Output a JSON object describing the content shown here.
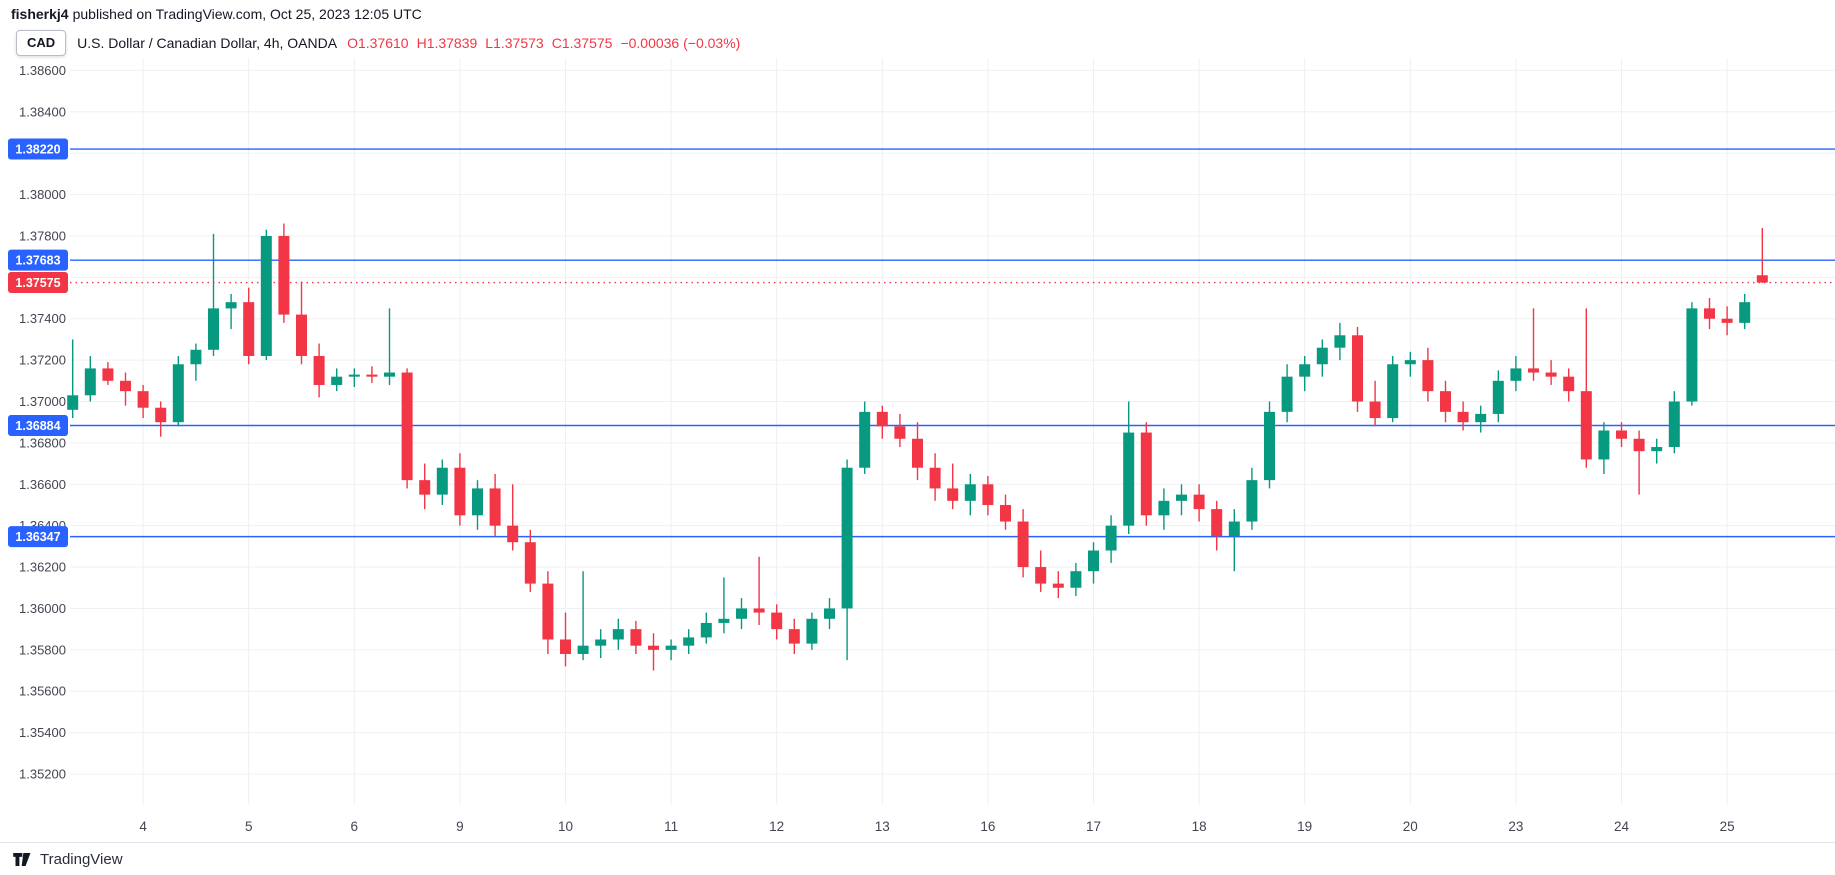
{
  "meta": {
    "username": "fisherkj4",
    "published_suffix": "published on TradingView.com, Oct 25, 2023 12:05 UTC"
  },
  "header": {
    "currency_badge": "CAD",
    "title": "U.S. Dollar / Canadian Dollar, 4h, OANDA",
    "ohlc": {
      "o_label": "O",
      "o": "1.37610",
      "h_label": "H",
      "h": "1.37839",
      "l_label": "L",
      "l": "1.37573",
      "c_label": "C",
      "c": "1.37575",
      "change": "−0.00036 (−0.03%)"
    }
  },
  "footer": {
    "brand": "TradingView"
  },
  "colors": {
    "up": "#089981",
    "down": "#f23645",
    "line_blue": "#2962ff",
    "last_price_red": "#f23645",
    "grid": "#edf0f4",
    "axis_text": "#434651",
    "text": "#131722"
  },
  "chart_data": {
    "type": "candlestick",
    "symbol": "U.S. Dollar / Canadian Dollar",
    "timeframe": "4h",
    "exchange": "OANDA",
    "y_axis": {
      "max_label": 1.386,
      "min_label": 1.352,
      "step": 0.002,
      "hidden_labels": [
        "1.38200",
        "1.37600"
      ]
    },
    "x_axis": {
      "labels": [
        {
          "index": 4,
          "label": "4"
        },
        {
          "index": 10,
          "label": "5"
        },
        {
          "index": 16,
          "label": "6"
        },
        {
          "index": 22,
          "label": "9"
        },
        {
          "index": 28,
          "label": "10"
        },
        {
          "index": 34,
          "label": "11"
        },
        {
          "index": 40,
          "label": "12"
        },
        {
          "index": 46,
          "label": "13"
        },
        {
          "index": 52,
          "label": "16"
        },
        {
          "index": 58,
          "label": "17"
        },
        {
          "index": 64,
          "label": "18"
        },
        {
          "index": 70,
          "label": "19"
        },
        {
          "index": 76,
          "label": "20"
        },
        {
          "index": 82,
          "label": "23"
        },
        {
          "index": 88,
          "label": "24"
        },
        {
          "index": 94,
          "label": "25"
        }
      ]
    },
    "price_lines": [
      {
        "price": 1.3822,
        "label": "1.38220",
        "color": "#2962ff",
        "style": "solid",
        "role": "level"
      },
      {
        "price": 1.37683,
        "label": "1.37683",
        "color": "#2962ff",
        "style": "solid",
        "role": "level"
      },
      {
        "price": 1.36884,
        "label": "1.36884",
        "color": "#2962ff",
        "style": "solid",
        "role": "level"
      },
      {
        "price": 1.36347,
        "label": "1.36347",
        "color": "#2962ff",
        "style": "solid",
        "role": "level"
      },
      {
        "price": 1.37575,
        "label": "1.37575",
        "color": "#f23645",
        "style": "dotted",
        "role": "last-price"
      }
    ],
    "candles": [
      [
        1.3696,
        1.373,
        1.3692,
        1.3703
      ],
      [
        1.3703,
        1.3722,
        1.37,
        1.3716
      ],
      [
        1.3716,
        1.3719,
        1.3708,
        1.371
      ],
      [
        1.371,
        1.3714,
        1.3698,
        1.3705
      ],
      [
        1.3705,
        1.3708,
        1.3692,
        1.3697
      ],
      [
        1.3697,
        1.37,
        1.3683,
        1.369
      ],
      [
        1.369,
        1.3722,
        1.3688,
        1.3718
      ],
      [
        1.3718,
        1.3728,
        1.371,
        1.3725
      ],
      [
        1.3725,
        1.3781,
        1.3722,
        1.3745
      ],
      [
        1.3745,
        1.3752,
        1.3735,
        1.3748
      ],
      [
        1.3748,
        1.3755,
        1.3718,
        1.3722
      ],
      [
        1.3722,
        1.3783,
        1.372,
        1.378
      ],
      [
        1.378,
        1.3786,
        1.3738,
        1.3742
      ],
      [
        1.3742,
        1.3758,
        1.3718,
        1.3722
      ],
      [
        1.3722,
        1.3728,
        1.3702,
        1.3708
      ],
      [
        1.3708,
        1.3716,
        1.3705,
        1.3712
      ],
      [
        1.3712,
        1.3716,
        1.3707,
        1.3713
      ],
      [
        1.3713,
        1.3717,
        1.3709,
        1.3712
      ],
      [
        1.3712,
        1.3745,
        1.3708,
        1.3714
      ],
      [
        1.3714,
        1.3716,
        1.3658,
        1.3662
      ],
      [
        1.3662,
        1.367,
        1.3648,
        1.3655
      ],
      [
        1.3655,
        1.3672,
        1.365,
        1.3668
      ],
      [
        1.3668,
        1.3675,
        1.364,
        1.3645
      ],
      [
        1.3645,
        1.3662,
        1.3638,
        1.3658
      ],
      [
        1.3658,
        1.3665,
        1.3635,
        1.364
      ],
      [
        1.364,
        1.366,
        1.3628,
        1.3632
      ],
      [
        1.3632,
        1.3638,
        1.3608,
        1.3612
      ],
      [
        1.3612,
        1.3618,
        1.3578,
        1.3585
      ],
      [
        1.3585,
        1.3598,
        1.3572,
        1.3578
      ],
      [
        1.3578,
        1.3618,
        1.3575,
        1.3582
      ],
      [
        1.3582,
        1.359,
        1.3576,
        1.3585
      ],
      [
        1.3585,
        1.3595,
        1.358,
        1.359
      ],
      [
        1.359,
        1.3594,
        1.3578,
        1.3582
      ],
      [
        1.3582,
        1.3588,
        1.357,
        1.358
      ],
      [
        1.358,
        1.3585,
        1.3575,
        1.3582
      ],
      [
        1.3582,
        1.359,
        1.3578,
        1.3586
      ],
      [
        1.3586,
        1.3598,
        1.3583,
        1.3593
      ],
      [
        1.3593,
        1.3615,
        1.3588,
        1.3595
      ],
      [
        1.3595,
        1.3605,
        1.359,
        1.36
      ],
      [
        1.36,
        1.3625,
        1.3592,
        1.3598
      ],
      [
        1.3598,
        1.3602,
        1.3585,
        1.359
      ],
      [
        1.359,
        1.3595,
        1.3578,
        1.3583
      ],
      [
        1.3583,
        1.3598,
        1.358,
        1.3595
      ],
      [
        1.3595,
        1.3605,
        1.359,
        1.36
      ],
      [
        1.36,
        1.3672,
        1.3575,
        1.3668
      ],
      [
        1.3668,
        1.37,
        1.3665,
        1.3695
      ],
      [
        1.3695,
        1.3698,
        1.3682,
        1.3688
      ],
      [
        1.3688,
        1.3694,
        1.3678,
        1.3682
      ],
      [
        1.3682,
        1.369,
        1.3662,
        1.3668
      ],
      [
        1.3668,
        1.3675,
        1.3652,
        1.3658
      ],
      [
        1.3658,
        1.367,
        1.3648,
        1.3652
      ],
      [
        1.3652,
        1.3665,
        1.3645,
        1.366
      ],
      [
        1.366,
        1.3664,
        1.3645,
        1.365
      ],
      [
        1.365,
        1.3655,
        1.3638,
        1.3642
      ],
      [
        1.3642,
        1.3648,
        1.3615,
        1.362
      ],
      [
        1.362,
        1.3628,
        1.3608,
        1.3612
      ],
      [
        1.3612,
        1.3618,
        1.3605,
        1.361
      ],
      [
        1.361,
        1.3622,
        1.3606,
        1.3618
      ],
      [
        1.3618,
        1.3632,
        1.3612,
        1.3628
      ],
      [
        1.3628,
        1.3645,
        1.3622,
        1.364
      ],
      [
        1.364,
        1.37,
        1.3636,
        1.3685
      ],
      [
        1.3685,
        1.369,
        1.364,
        1.3645
      ],
      [
        1.3645,
        1.3658,
        1.3638,
        1.3652
      ],
      [
        1.3652,
        1.366,
        1.3645,
        1.3655
      ],
      [
        1.3655,
        1.366,
        1.3642,
        1.3648
      ],
      [
        1.3648,
        1.3652,
        1.3628,
        1.3635
      ],
      [
        1.3635,
        1.3648,
        1.3618,
        1.3642
      ],
      [
        1.3642,
        1.3668,
        1.3638,
        1.3662
      ],
      [
        1.3662,
        1.37,
        1.3658,
        1.3695
      ],
      [
        1.3695,
        1.3718,
        1.369,
        1.3712
      ],
      [
        1.3712,
        1.3722,
        1.3705,
        1.3718
      ],
      [
        1.3718,
        1.373,
        1.3712,
        1.3726
      ],
      [
        1.3726,
        1.3738,
        1.372,
        1.3732
      ],
      [
        1.3732,
        1.3736,
        1.3695,
        1.37
      ],
      [
        1.37,
        1.371,
        1.3688,
        1.3692
      ],
      [
        1.3692,
        1.3722,
        1.369,
        1.3718
      ],
      [
        1.3718,
        1.3724,
        1.3712,
        1.372
      ],
      [
        1.372,
        1.3726,
        1.37,
        1.3705
      ],
      [
        1.3705,
        1.371,
        1.369,
        1.3695
      ],
      [
        1.3695,
        1.37,
        1.3686,
        1.369
      ],
      [
        1.369,
        1.3698,
        1.3685,
        1.3694
      ],
      [
        1.3694,
        1.3715,
        1.369,
        1.371
      ],
      [
        1.371,
        1.3722,
        1.3705,
        1.3716
      ],
      [
        1.3716,
        1.3745,
        1.371,
        1.3714
      ],
      [
        1.3714,
        1.372,
        1.3708,
        1.3712
      ],
      [
        1.3712,
        1.3716,
        1.37,
        1.3705
      ],
      [
        1.3705,
        1.3745,
        1.3668,
        1.3672
      ],
      [
        1.3672,
        1.369,
        1.3665,
        1.3686
      ],
      [
        1.3686,
        1.369,
        1.3678,
        1.3682
      ],
      [
        1.3682,
        1.3686,
        1.3655,
        1.3676
      ],
      [
        1.3676,
        1.3682,
        1.367,
        1.3678
      ],
      [
        1.3678,
        1.3705,
        1.3675,
        1.37
      ],
      [
        1.37,
        1.3748,
        1.3698,
        1.3745
      ],
      [
        1.3745,
        1.375,
        1.3735,
        1.374
      ],
      [
        1.374,
        1.3746,
        1.3732,
        1.3738
      ],
      [
        1.3738,
        1.3752,
        1.3735,
        1.3748
      ],
      [
        1.3761,
        1.37839,
        1.37573,
        1.37575
      ]
    ]
  }
}
